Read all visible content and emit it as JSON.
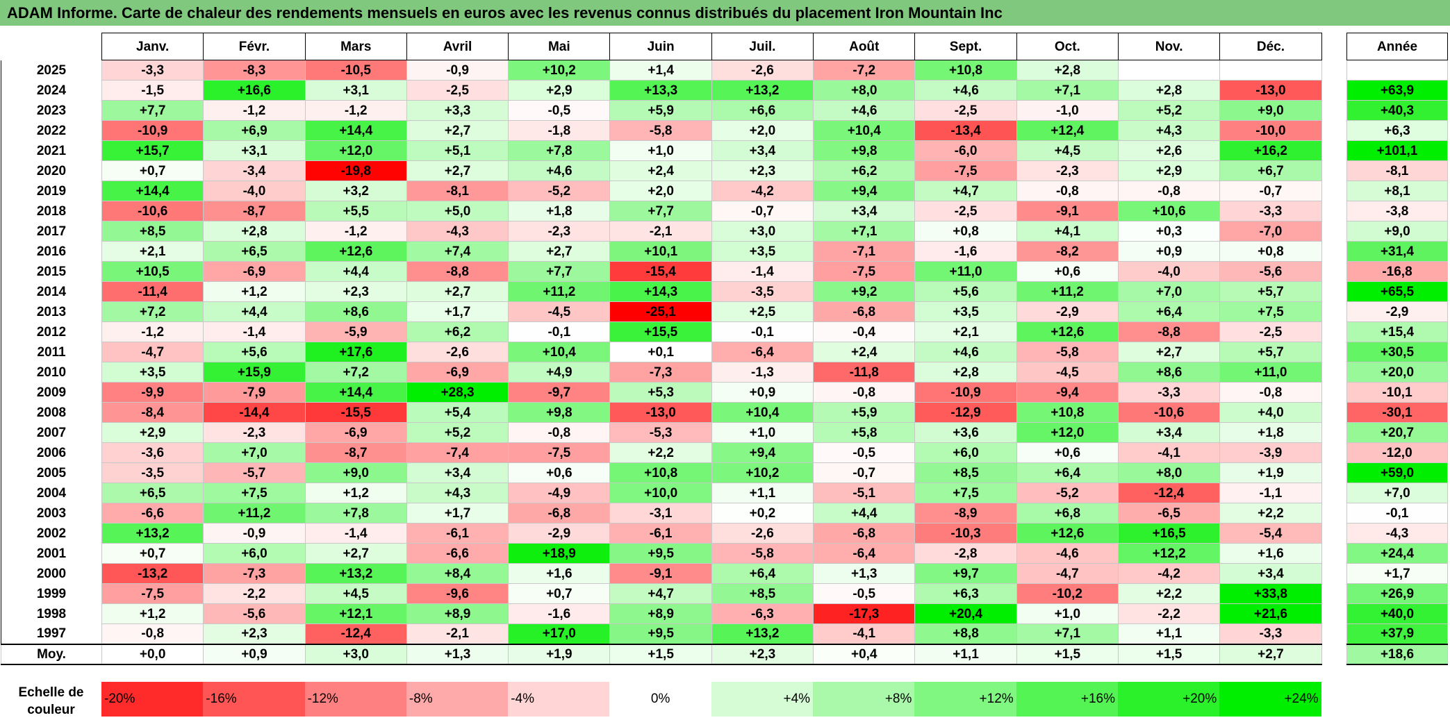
{
  "title": "ADAM Informe. Carte de chaleur des rendements mensuels en euros avec les revenus connus distribués du placement Iron Mountain Inc",
  "chart_data": {
    "type": "heatmap",
    "title": "ADAM Informe. Carte de chaleur des rendements mensuels en euros avec les revenus connus distribués du placement Iron Mountain Inc",
    "columns": [
      "Janv.",
      "Févr.",
      "Mars",
      "Avril",
      "Mai",
      "Juin",
      "Juil.",
      "Août",
      "Sept.",
      "Oct.",
      "Nov.",
      "Déc."
    ],
    "year_header": "Année",
    "rows": [
      {
        "year": "2025",
        "values": [
          "-3,3",
          "-8,3",
          "-10,5",
          "-0,9",
          "+10,2",
          "+1,4",
          "-2,6",
          "-7,2",
          "+10,8",
          "+2,8",
          "",
          ""
        ],
        "annual": ""
      },
      {
        "year": "2024",
        "values": [
          "-1,5",
          "+16,6",
          "+3,1",
          "-2,5",
          "+2,9",
          "+13,3",
          "+13,2",
          "+8,0",
          "+4,6",
          "+7,1",
          "+2,8",
          "-13,0"
        ],
        "annual": "+63,9"
      },
      {
        "year": "2023",
        "values": [
          "+7,7",
          "-1,2",
          "-1,2",
          "+3,3",
          "-0,5",
          "+5,9",
          "+6,6",
          "+4,6",
          "-2,5",
          "-1,0",
          "+5,2",
          "+9,0"
        ],
        "annual": "+40,3"
      },
      {
        "year": "2022",
        "values": [
          "-10,9",
          "+6,9",
          "+14,4",
          "+2,7",
          "-1,8",
          "-5,8",
          "+2,0",
          "+10,4",
          "-13,4",
          "+12,4",
          "+4,3",
          "-10,0"
        ],
        "annual": "+6,3"
      },
      {
        "year": "2021",
        "values": [
          "+15,7",
          "+3,1",
          "+12,0",
          "+5,1",
          "+7,8",
          "+1,0",
          "+3,4",
          "+9,8",
          "-6,0",
          "+4,5",
          "+2,6",
          "+16,2"
        ],
        "annual": "+101,1"
      },
      {
        "year": "2020",
        "values": [
          "+0,7",
          "-3,4",
          "-19,8",
          "+2,7",
          "+4,6",
          "+2,4",
          "+2,3",
          "+6,2",
          "-7,5",
          "-2,3",
          "+2,9",
          "+6,7"
        ],
        "annual": "-8,1"
      },
      {
        "year": "2019",
        "values": [
          "+14,4",
          "-4,0",
          "+3,2",
          "-8,1",
          "-5,2",
          "+2,0",
          "-4,2",
          "+9,4",
          "+4,7",
          "-0,8",
          "-0,8",
          "-0,7"
        ],
        "annual": "+8,1"
      },
      {
        "year": "2018",
        "values": [
          "-10,6",
          "-8,7",
          "+5,5",
          "+5,0",
          "+1,8",
          "+7,7",
          "-0,7",
          "+3,4",
          "-2,5",
          "-9,1",
          "+10,6",
          "-3,3"
        ],
        "annual": "-3,8"
      },
      {
        "year": "2017",
        "values": [
          "+8,5",
          "+2,8",
          "-1,2",
          "-4,3",
          "-2,3",
          "-2,1",
          "+3,0",
          "+7,1",
          "+0,8",
          "+4,1",
          "+0,3",
          "-7,0"
        ],
        "annual": "+9,0"
      },
      {
        "year": "2016",
        "values": [
          "+2,1",
          "+6,5",
          "+12,6",
          "+7,4",
          "+2,7",
          "+10,1",
          "+3,5",
          "-7,1",
          "-1,6",
          "-8,2",
          "+0,9",
          "+0,8"
        ],
        "annual": "+31,4"
      },
      {
        "year": "2015",
        "values": [
          "+10,5",
          "-6,9",
          "+4,4",
          "-8,8",
          "+7,7",
          "-15,4",
          "-1,4",
          "-7,5",
          "+11,0",
          "+0,6",
          "-4,0",
          "-5,6"
        ],
        "annual": "-16,8"
      },
      {
        "year": "2014",
        "values": [
          "-11,4",
          "+1,2",
          "+2,3",
          "+2,7",
          "+11,2",
          "+14,3",
          "-3,5",
          "+9,2",
          "+5,6",
          "+11,2",
          "+7,0",
          "+5,7"
        ],
        "annual": "+65,5"
      },
      {
        "year": "2013",
        "values": [
          "+7,2",
          "+4,4",
          "+8,6",
          "+1,7",
          "-4,5",
          "-25,1",
          "+2,5",
          "-6,8",
          "+3,5",
          "-2,9",
          "+6,4",
          "+7,5"
        ],
        "annual": "-2,9"
      },
      {
        "year": "2012",
        "values": [
          "-1,2",
          "-1,4",
          "-5,9",
          "+6,2",
          "-0,1",
          "+15,5",
          "-0,1",
          "-0,4",
          "+2,1",
          "+12,6",
          "-8,8",
          "-2,5"
        ],
        "annual": "+15,4"
      },
      {
        "year": "2011",
        "values": [
          "-4,7",
          "+5,6",
          "+17,6",
          "-2,6",
          "+10,4",
          "+0,1",
          "-6,4",
          "+2,4",
          "+4,6",
          "-5,8",
          "+2,7",
          "+5,7"
        ],
        "annual": "+30,5"
      },
      {
        "year": "2010",
        "values": [
          "+3,5",
          "+15,9",
          "+7,2",
          "-6,9",
          "+4,9",
          "-7,3",
          "-1,3",
          "-11,8",
          "+2,8",
          "-4,5",
          "+8,6",
          "+11,0"
        ],
        "annual": "+20,0"
      },
      {
        "year": "2009",
        "values": [
          "-9,9",
          "-7,9",
          "+14,4",
          "+28,3",
          "-9,7",
          "+5,3",
          "+0,9",
          "-0,8",
          "-10,9",
          "-9,4",
          "-3,3",
          "-0,8"
        ],
        "annual": "-10,1"
      },
      {
        "year": "2008",
        "values": [
          "-8,4",
          "-14,4",
          "-15,5",
          "+5,4",
          "+9,8",
          "-13,0",
          "+10,4",
          "+5,9",
          "-12,9",
          "+10,8",
          "-10,6",
          "+4,0"
        ],
        "annual": "-30,1"
      },
      {
        "year": "2007",
        "values": [
          "+2,9",
          "-2,3",
          "-6,9",
          "+5,2",
          "-0,8",
          "-5,3",
          "+1,0",
          "+5,8",
          "+3,6",
          "+12,0",
          "+3,4",
          "+1,8"
        ],
        "annual": "+20,7"
      },
      {
        "year": "2006",
        "values": [
          "-3,6",
          "+7,0",
          "-8,7",
          "-7,4",
          "-7,5",
          "+2,2",
          "+9,4",
          "-0,5",
          "+6,0",
          "+0,6",
          "-4,1",
          "-3,9"
        ],
        "annual": "-12,0"
      },
      {
        "year": "2005",
        "values": [
          "-3,5",
          "-5,7",
          "+9,0",
          "+3,4",
          "+0,6",
          "+10,8",
          "+10,2",
          "-0,7",
          "+8,5",
          "+6,4",
          "+8,0",
          "+1,9"
        ],
        "annual": "+59,0"
      },
      {
        "year": "2004",
        "values": [
          "+6,5",
          "+7,5",
          "+1,2",
          "+4,3",
          "-4,9",
          "+10,0",
          "+1,1",
          "-5,1",
          "+7,5",
          "-5,2",
          "-12,4",
          "-1,1"
        ],
        "annual": "+7,0"
      },
      {
        "year": "2003",
        "values": [
          "-6,6",
          "+11,2",
          "+7,8",
          "+1,7",
          "-6,8",
          "-3,1",
          "+0,2",
          "+4,4",
          "-8,9",
          "+6,8",
          "-6,5",
          "+2,2"
        ],
        "annual": "-0,1"
      },
      {
        "year": "2002",
        "values": [
          "+13,2",
          "-0,9",
          "-1,4",
          "-6,1",
          "-2,9",
          "-6,1",
          "-2,6",
          "-6,8",
          "-10,3",
          "+12,6",
          "+16,5",
          "-5,4"
        ],
        "annual": "-4,3"
      },
      {
        "year": "2001",
        "values": [
          "+0,7",
          "+6,0",
          "+2,7",
          "-6,6",
          "+18,9",
          "+9,5",
          "-5,8",
          "-6,4",
          "-2,8",
          "-4,6",
          "+12,2",
          "+1,6"
        ],
        "annual": "+24,4"
      },
      {
        "year": "2000",
        "values": [
          "-13,2",
          "-7,3",
          "+13,2",
          "+8,4",
          "+1,6",
          "-9,1",
          "+6,4",
          "+1,3",
          "+9,7",
          "-4,7",
          "-4,2",
          "+3,4"
        ],
        "annual": "+1,7"
      },
      {
        "year": "1999",
        "values": [
          "-7,5",
          "-2,2",
          "+4,5",
          "-9,6",
          "+0,7",
          "+4,7",
          "+8,5",
          "-0,5",
          "+6,3",
          "-10,2",
          "+2,2",
          "+33,8"
        ],
        "annual": "+26,9"
      },
      {
        "year": "1998",
        "values": [
          "+1,2",
          "-5,6",
          "+12,1",
          "+8,9",
          "-1,6",
          "+8,9",
          "-6,3",
          "-17,3",
          "+20,4",
          "+1,0",
          "-2,2",
          "+21,6"
        ],
        "annual": "+40,0"
      },
      {
        "year": "1997",
        "values": [
          "-0,8",
          "+2,3",
          "-12,4",
          "-2,1",
          "+17,0",
          "+9,5",
          "+13,2",
          "-4,1",
          "+8,8",
          "+7,1",
          "+1,1",
          "-3,3"
        ],
        "annual": "+37,9"
      }
    ],
    "average": {
      "label": "Moy.",
      "values": [
        "+0,0",
        "+0,9",
        "+3,0",
        "+1,3",
        "+1,9",
        "+1,5",
        "+2,3",
        "+0,4",
        "+1,1",
        "+1,5",
        "+1,5",
        "+2,7"
      ],
      "annual": "+18,6"
    }
  },
  "scale": {
    "label": "Echelle de couleur",
    "stops": [
      "-20%",
      "-16%",
      "-12%",
      "-8%",
      "-4%",
      "0%",
      "+4%",
      "+8%",
      "+12%",
      "+16%",
      "+20%",
      "+24%"
    ]
  },
  "colors": {
    "negative_max": "#ff0000",
    "neutral": "#ffffff",
    "positive_max": "#00ee00",
    "title_bar": "#7fc87d"
  }
}
